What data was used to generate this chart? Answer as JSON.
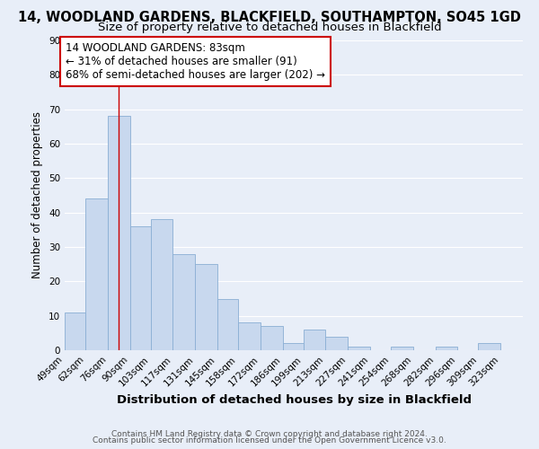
{
  "title": "14, WOODLAND GARDENS, BLACKFIELD, SOUTHAMPTON, SO45 1GD",
  "subtitle": "Size of property relative to detached houses in Blackfield",
  "xlabel": "Distribution of detached houses by size in Blackfield",
  "ylabel": "Number of detached properties",
  "bar_color": "#c8d8ee",
  "bar_edge_color": "#8aaed4",
  "background_color": "#e8eef8",
  "axes_bg_color": "#e8eef8",
  "grid_color": "#ffffff",
  "bin_labels": [
    "49sqm",
    "62sqm",
    "76sqm",
    "90sqm",
    "103sqm",
    "117sqm",
    "131sqm",
    "145sqm",
    "158sqm",
    "172sqm",
    "186sqm",
    "199sqm",
    "213sqm",
    "227sqm",
    "241sqm",
    "254sqm",
    "268sqm",
    "282sqm",
    "296sqm",
    "309sqm",
    "323sqm"
  ],
  "bar_heights": [
    11,
    44,
    68,
    36,
    38,
    28,
    25,
    15,
    8,
    7,
    2,
    6,
    4,
    1,
    0,
    1,
    0,
    1,
    0,
    2,
    0
  ],
  "bin_edges": [
    49,
    62,
    76,
    90,
    103,
    117,
    131,
    145,
    158,
    172,
    186,
    199,
    213,
    227,
    241,
    254,
    268,
    282,
    296,
    309,
    323,
    337
  ],
  "vline_x": 83,
  "vline_color": "#cc0000",
  "ylim": [
    0,
    90
  ],
  "yticks": [
    0,
    10,
    20,
    30,
    40,
    50,
    60,
    70,
    80,
    90
  ],
  "annotation_box_text": "14 WOODLAND GARDENS: 83sqm\n← 31% of detached houses are smaller (91)\n68% of semi-detached houses are larger (202) →",
  "annotation_box_color": "#cc0000",
  "annotation_box_bg": "#ffffff",
  "footer_line1": "Contains HM Land Registry data © Crown copyright and database right 2024.",
  "footer_line2": "Contains public sector information licensed under the Open Government Licence v3.0.",
  "title_fontsize": 10.5,
  "subtitle_fontsize": 9.5,
  "xlabel_fontsize": 9.5,
  "ylabel_fontsize": 8.5,
  "tick_fontsize": 7.5,
  "annotation_fontsize": 8.5,
  "footer_fontsize": 6.5
}
